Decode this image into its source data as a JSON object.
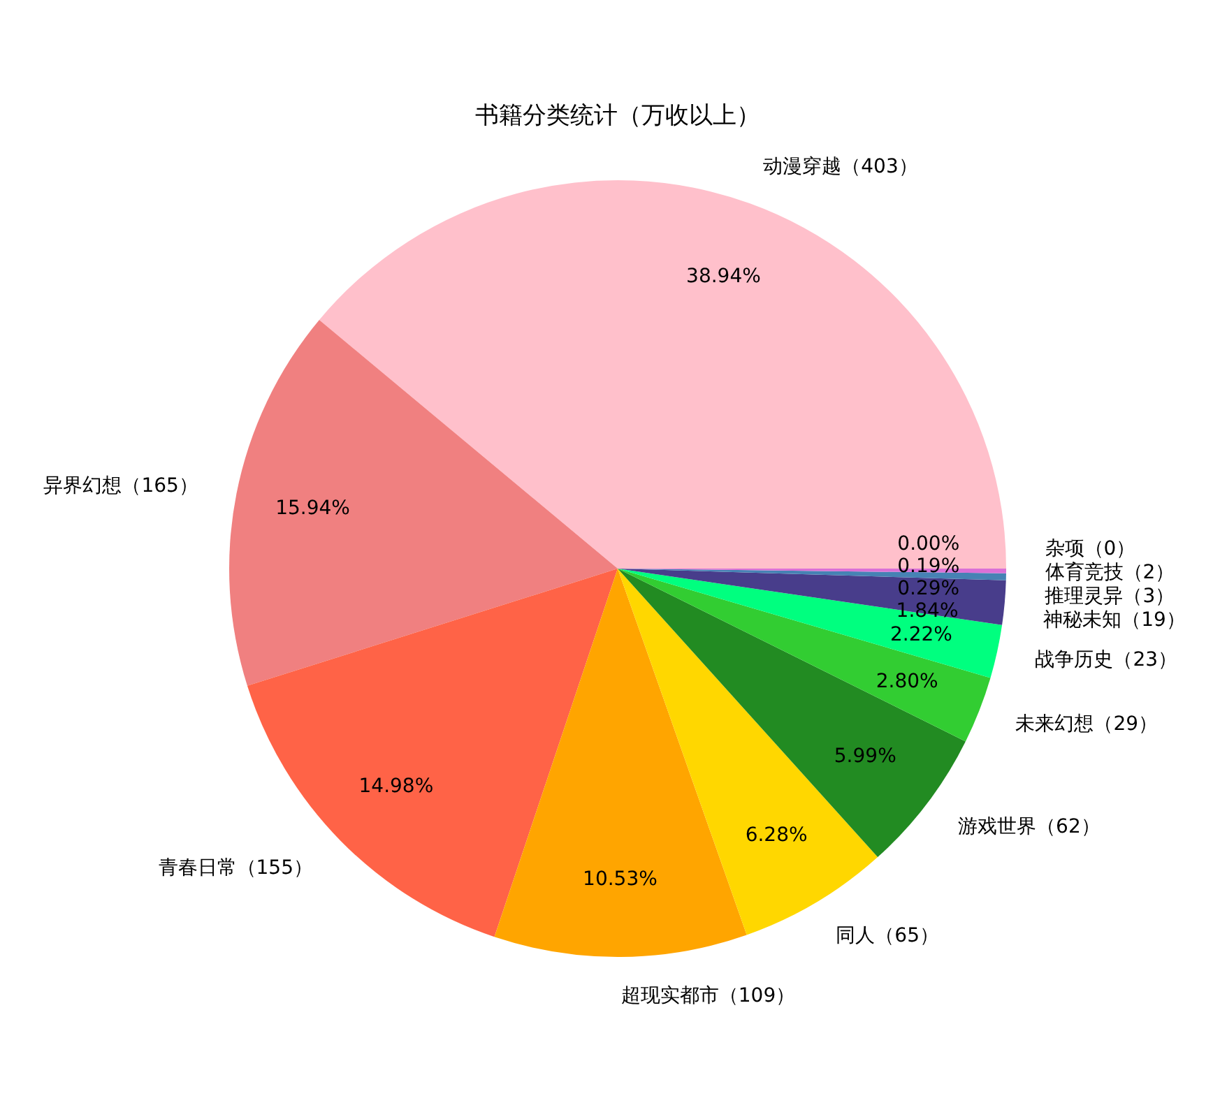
{
  "chart_data": {
    "type": "pie",
    "title": "书籍分类统计（万收以上）",
    "categories": [
      "动漫穿越（403）",
      "异界幻想（165）",
      "青春日常（155）",
      "超现实都市（109）",
      "同人（65）",
      "游戏世界（62）",
      "未来幻想（29）",
      "战争历史（23）",
      "神秘未知（19）",
      "推理灵异（3）",
      "体育竞技（2）",
      "杂项（0）"
    ],
    "values": [
      38.94,
      15.94,
      14.98,
      10.53,
      6.28,
      5.99,
      2.8,
      2.22,
      1.84,
      0.29,
      0.19,
      0.0
    ],
    "colors": [
      "#ffc0cb",
      "#f08080",
      "#ff6347",
      "#ffa500",
      "#ffd700",
      "#228b22",
      "#32cd32",
      "#00ff7f",
      "#483d8b",
      "#4682b4",
      "#da70d6",
      "#9370db"
    ],
    "value_labels": [
      "38.94%",
      "15.94%",
      "14.98%",
      "10.53%",
      "6.28%",
      "5.99%",
      "2.80%",
      "2.22%",
      "1.84%",
      "0.29%",
      "0.19%",
      "0.00%"
    ]
  }
}
